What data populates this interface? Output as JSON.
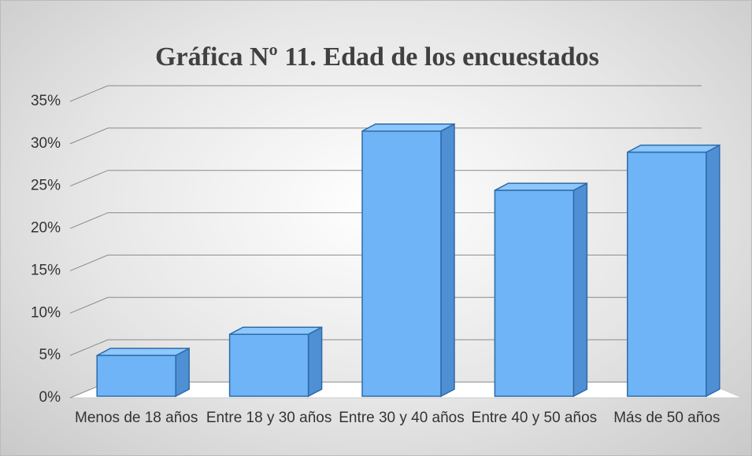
{
  "chart_data": {
    "type": "bar3d",
    "title": "Gráfica Nº 11. Edad de los encuestados",
    "categories": [
      "Menos de 18 años",
      "Entre 18 y 30 años",
      "Entre 30 y 40 años",
      "Entre 40 y 50 años",
      "Más de 50 años"
    ],
    "values": [
      5,
      7.5,
      31.5,
      24.5,
      29
    ],
    "color": "#6fb4f7",
    "ylim": [
      0,
      35
    ],
    "yticks": [
      {
        "value": 0,
        "label": "0%"
      },
      {
        "value": 5,
        "label": "5%"
      },
      {
        "value": 10,
        "label": "10%"
      },
      {
        "value": 15,
        "label": "15%"
      },
      {
        "value": 20,
        "label": "20%"
      },
      {
        "value": 25,
        "label": "25%"
      },
      {
        "value": 30,
        "label": "30%"
      },
      {
        "value": 35,
        "label": "35%"
      }
    ],
    "grid": true
  }
}
